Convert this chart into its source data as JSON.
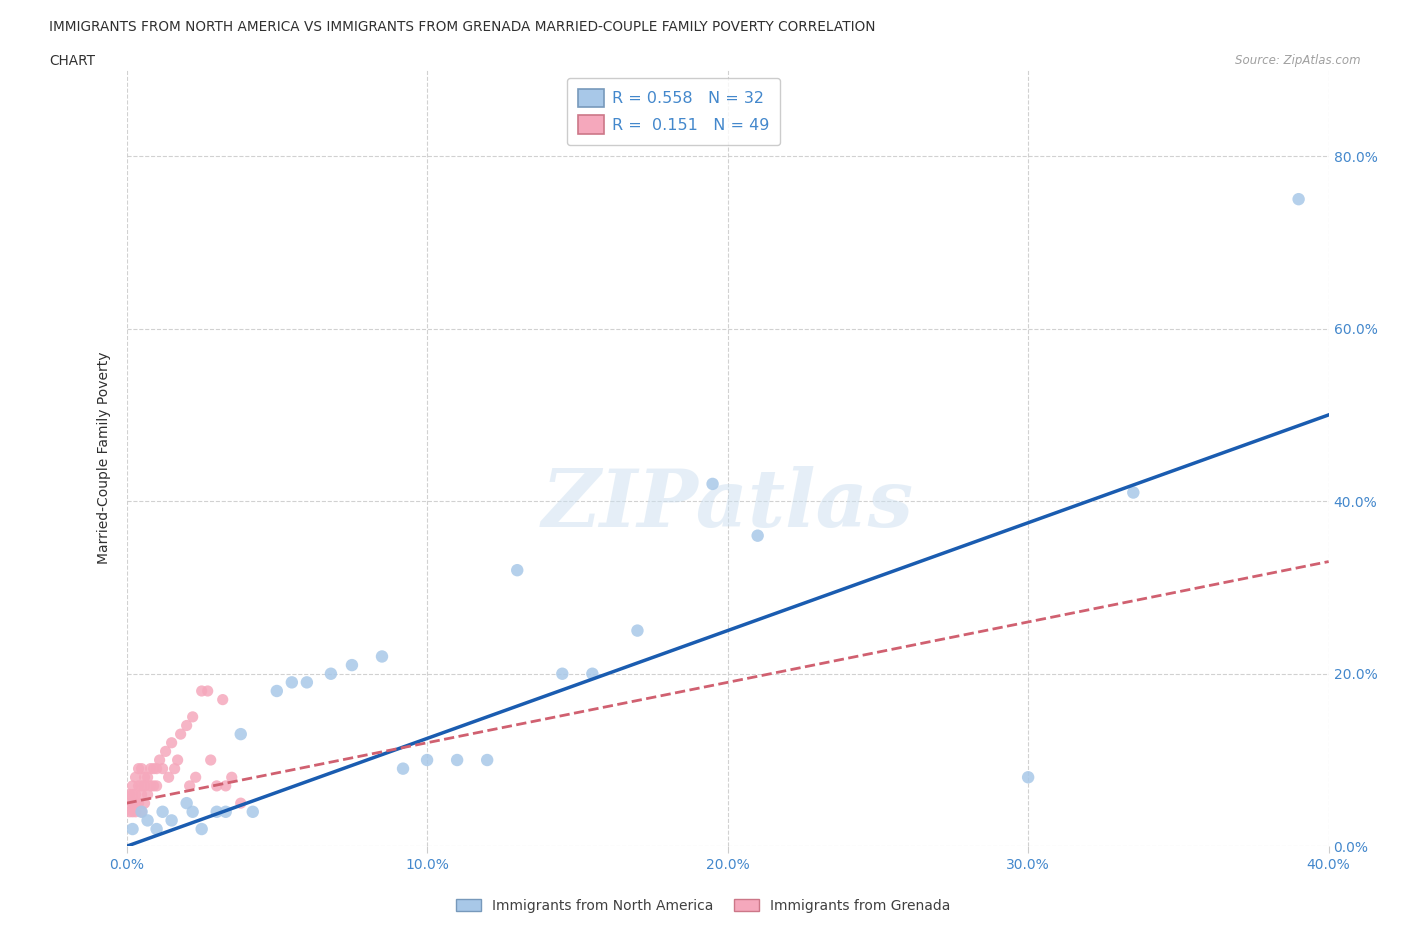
{
  "title_line1": "IMMIGRANTS FROM NORTH AMERICA VS IMMIGRANTS FROM GRENADA MARRIED-COUPLE FAMILY POVERTY CORRELATION",
  "title_line2": "CHART",
  "source": "Source: ZipAtlas.com",
  "ylabel": "Married-Couple Family Poverty",
  "xlim": [
    0.0,
    0.4
  ],
  "ylim": [
    0.0,
    0.9
  ],
  "xticks": [
    0.0,
    0.1,
    0.2,
    0.3,
    0.4
  ],
  "yticks": [
    0.0,
    0.2,
    0.4,
    0.6,
    0.8
  ],
  "ytick_labels": [
    "0.0%",
    "20.0%",
    "40.0%",
    "60.0%",
    "80.0%"
  ],
  "xtick_labels": [
    "0.0%",
    "10.0%",
    "20.0%",
    "30.0%",
    "40.0%"
  ],
  "watermark": "ZIPatlas",
  "series1_label": "Immigrants from North America",
  "series2_label": "Immigrants from Grenada",
  "R1": 0.558,
  "N1": 32,
  "R2": 0.151,
  "N2": 49,
  "color1": "#a8c8e8",
  "color2": "#f5a8bc",
  "line1_color": "#1a5cb0",
  "line2_color": "#d06070",
  "background_color": "#ffffff",
  "grid_color": "#cccccc",
  "title_color": "#303030",
  "axis_tick_color": "#4488cc",
  "blue_x": [
    0.002,
    0.005,
    0.007,
    0.01,
    0.012,
    0.015,
    0.02,
    0.022,
    0.025,
    0.03,
    0.033,
    0.038,
    0.042,
    0.05,
    0.055,
    0.06,
    0.068,
    0.075,
    0.085,
    0.092,
    0.1,
    0.11,
    0.12,
    0.13,
    0.145,
    0.155,
    0.17,
    0.195,
    0.21,
    0.3,
    0.335,
    0.39
  ],
  "blue_y": [
    0.02,
    0.04,
    0.03,
    0.02,
    0.04,
    0.03,
    0.05,
    0.04,
    0.02,
    0.04,
    0.04,
    0.13,
    0.04,
    0.18,
    0.19,
    0.19,
    0.2,
    0.21,
    0.22,
    0.09,
    0.1,
    0.1,
    0.1,
    0.32,
    0.2,
    0.2,
    0.25,
    0.42,
    0.36,
    0.08,
    0.41,
    0.75
  ],
  "pink_x": [
    0.001,
    0.001,
    0.001,
    0.002,
    0.002,
    0.002,
    0.002,
    0.003,
    0.003,
    0.003,
    0.003,
    0.004,
    0.004,
    0.004,
    0.005,
    0.005,
    0.005,
    0.005,
    0.006,
    0.006,
    0.006,
    0.007,
    0.007,
    0.008,
    0.008,
    0.009,
    0.009,
    0.01,
    0.01,
    0.011,
    0.012,
    0.013,
    0.014,
    0.015,
    0.016,
    0.017,
    0.018,
    0.02,
    0.021,
    0.022,
    0.023,
    0.025,
    0.027,
    0.028,
    0.03,
    0.032,
    0.033,
    0.035,
    0.038
  ],
  "pink_y": [
    0.04,
    0.05,
    0.06,
    0.04,
    0.05,
    0.06,
    0.07,
    0.04,
    0.05,
    0.06,
    0.08,
    0.05,
    0.07,
    0.09,
    0.04,
    0.06,
    0.07,
    0.09,
    0.05,
    0.07,
    0.08,
    0.06,
    0.08,
    0.07,
    0.09,
    0.07,
    0.09,
    0.07,
    0.09,
    0.1,
    0.09,
    0.11,
    0.08,
    0.12,
    0.09,
    0.1,
    0.13,
    0.14,
    0.07,
    0.15,
    0.08,
    0.18,
    0.18,
    0.1,
    0.07,
    0.17,
    0.07,
    0.08,
    0.05
  ],
  "blue_line_x0": 0.0,
  "blue_line_y0": 0.0,
  "blue_line_x1": 0.4,
  "blue_line_y1": 0.5,
  "pink_line_x0": 0.0,
  "pink_line_y0": 0.05,
  "pink_line_x1": 0.4,
  "pink_line_y1": 0.33
}
